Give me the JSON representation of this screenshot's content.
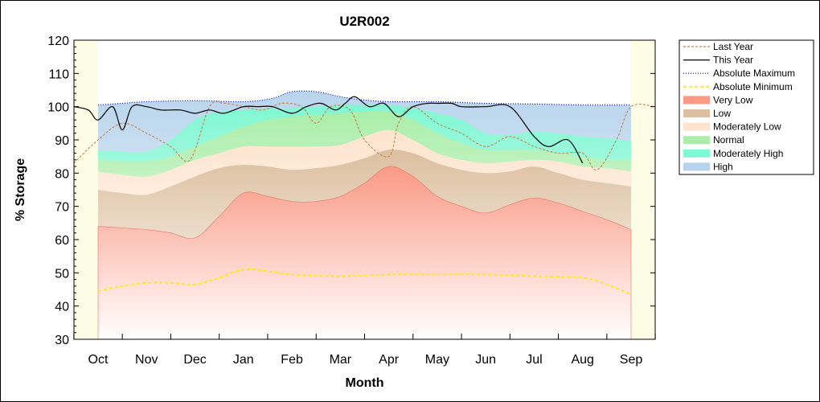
{
  "chart_data": {
    "type": "area",
    "title": "U2R002",
    "xlabel": "Month",
    "ylabel": "% Storage",
    "ylim": [
      30,
      120
    ],
    "yticks": [
      30,
      40,
      50,
      60,
      70,
      80,
      90,
      100,
      110,
      120
    ],
    "categories": [
      "Oct",
      "Nov",
      "Dec",
      "Jan",
      "Feb",
      "Mar",
      "Apr",
      "May",
      "Jun",
      "Jul",
      "Aug",
      "Sep"
    ],
    "legend_position": "right",
    "series": [
      {
        "name": "Last Year",
        "kind": "line",
        "color": "#c8824a",
        "dash": "3,2",
        "x": [
          -0.5,
          0,
          0.5,
          1,
          1.5,
          1.9,
          2.3,
          2.6,
          3,
          3.4,
          3.8,
          4.2,
          4.5,
          4.8,
          5.2,
          5.5,
          6,
          6.2,
          6.5,
          7,
          7.5,
          8,
          8.5,
          9,
          9.5,
          10,
          10.3,
          10.7,
          11,
          11.5
        ],
        "y": [
          83,
          90,
          95,
          92,
          88,
          84,
          100,
          101,
          100,
          99,
          101,
          100,
          95,
          100,
          99,
          90,
          85,
          95,
          100,
          95,
          92,
          88,
          91,
          88,
          86,
          86,
          81,
          90,
          100,
          100
        ]
      },
      {
        "name": "This Year",
        "kind": "line",
        "color": "#000000",
        "dash": "",
        "x": [
          -0.5,
          -0.2,
          0,
          0.3,
          0.5,
          0.7,
          1,
          1.3,
          1.7,
          2,
          2.3,
          2.6,
          3,
          3.3,
          3.6,
          4,
          4.3,
          4.6,
          4.9,
          5.1,
          5.3,
          5.6,
          5.9,
          6.2,
          6.5,
          6.8,
          7,
          7.3,
          7.5,
          8,
          8.5,
          9,
          9.3,
          9.7,
          10
        ],
        "y": [
          100,
          99,
          96,
          100,
          93,
          100,
          100,
          99,
          99,
          98,
          99,
          98,
          100,
          100,
          100,
          98,
          100,
          101,
          99,
          101,
          103,
          100,
          101,
          97,
          100,
          101,
          101,
          101,
          100,
          100,
          100,
          91,
          88,
          90,
          83
        ]
      },
      {
        "name": "Absolute Maximum",
        "kind": "line",
        "color": "#0000cc",
        "dash": "1,2",
        "x": [
          0,
          0.5,
          1,
          2,
          3,
          3.6,
          4,
          4.5,
          5,
          5.5,
          6,
          7,
          8,
          9,
          10,
          11
        ],
        "y": [
          100.5,
          101,
          101.5,
          101.8,
          101.5,
          102.5,
          104.5,
          104.5,
          103,
          102,
          101.5,
          101.5,
          101,
          100.8,
          100.5,
          100.5
        ]
      },
      {
        "name": "Absolute Minimum",
        "kind": "line",
        "color": "#ffee00",
        "dash": "4,3",
        "x": [
          0,
          0.5,
          1,
          1.5,
          2,
          2.5,
          3,
          3.5,
          4,
          5,
          6,
          7,
          8,
          9,
          10,
          10.5,
          11
        ],
        "y": [
          44.5,
          46,
          47,
          47,
          46.5,
          48.5,
          51,
          50.5,
          49.5,
          49,
          49.5,
          49.5,
          49.5,
          49,
          48.5,
          46.5,
          43.5
        ]
      },
      {
        "name": "Very Low",
        "kind": "band",
        "color": "#fa9985",
        "x": [
          0,
          0.5,
          1,
          1.5,
          2,
          2.5,
          3,
          3.5,
          4,
          4.5,
          5,
          5.5,
          6,
          6.5,
          7,
          7.5,
          8,
          8.5,
          9,
          9.5,
          10,
          10.5,
          11
        ],
        "y": [
          64,
          63.5,
          63,
          62,
          60.5,
          67,
          74,
          73,
          71.5,
          71.5,
          73,
          77,
          82,
          79,
          73,
          70,
          68,
          70.5,
          72.5,
          71,
          68.5,
          66,
          63
        ]
      },
      {
        "name": "Low",
        "kind": "band",
        "color": "#dcbf9f",
        "x": [
          0,
          0.5,
          1,
          1.5,
          2,
          2.5,
          3,
          3.5,
          4,
          4.5,
          5,
          5.5,
          6,
          6.5,
          7,
          7.5,
          8,
          8.5,
          9,
          9.5,
          10,
          10.5,
          11
        ],
        "y": [
          75,
          74,
          73.5,
          76,
          79,
          81.5,
          82.5,
          82,
          81,
          81.5,
          82.5,
          84.5,
          87,
          86,
          83,
          81,
          80,
          80.5,
          82,
          80,
          78,
          77,
          76
        ]
      },
      {
        "name": "Moderately Low",
        "kind": "band",
        "color": "#fde4ce",
        "x": [
          0,
          0.5,
          1,
          1.5,
          2,
          2.5,
          3,
          3.5,
          4,
          4.5,
          5,
          5.5,
          6,
          6.5,
          7,
          7.5,
          8,
          8.5,
          9,
          9.5,
          10,
          10.5,
          11
        ],
        "y": [
          80.5,
          79.5,
          79,
          81,
          84,
          86,
          88,
          88,
          88,
          88,
          88.5,
          91,
          93,
          90,
          86,
          84,
          83,
          83.5,
          84,
          83.5,
          82,
          81.5,
          80.5
        ]
      },
      {
        "name": "Normal",
        "kind": "band",
        "color": "#aaeeaa",
        "x": [
          0,
          0.5,
          1,
          1.5,
          2,
          2.5,
          3,
          3.5,
          4,
          4.5,
          5,
          5.5,
          6,
          6.5,
          7,
          7.5,
          8,
          8.5,
          9,
          9.5,
          10,
          10.5,
          11
        ],
        "y": [
          84,
          83.5,
          83.5,
          85,
          88,
          91,
          94,
          96,
          97,
          97.5,
          98,
          98.5,
          98.5,
          96,
          92,
          89,
          87,
          87,
          87,
          86,
          85,
          84,
          84
        ]
      },
      {
        "name": "Moderately High",
        "kind": "band",
        "color": "#7ff7d2",
        "x": [
          0,
          0.5,
          1,
          1.5,
          2,
          2.5,
          3,
          3.5,
          4,
          4.5,
          5,
          5.5,
          6,
          6.5,
          7,
          7.5,
          8,
          8.5,
          9,
          9.5,
          10,
          10.5,
          11
        ],
        "y": [
          87,
          86.5,
          86.5,
          90,
          96,
          98.5,
          99,
          99.5,
          99.5,
          100,
          100.5,
          100.5,
          100.5,
          99.5,
          98,
          96,
          92,
          91.5,
          92.5,
          92,
          91,
          90.5,
          89.5
        ]
      },
      {
        "name": "High",
        "kind": "band",
        "color": "#b8d4ec",
        "x": [
          0,
          0.5,
          1,
          2,
          3,
          3.6,
          4,
          4.5,
          5,
          5.5,
          6,
          7,
          8,
          9,
          10,
          11
        ],
        "y": [
          100.5,
          101,
          101.5,
          101.8,
          101.5,
          102.5,
          104.5,
          104.5,
          103,
          102,
          101.5,
          101.5,
          101,
          100.8,
          100.5,
          100.5
        ]
      }
    ]
  }
}
